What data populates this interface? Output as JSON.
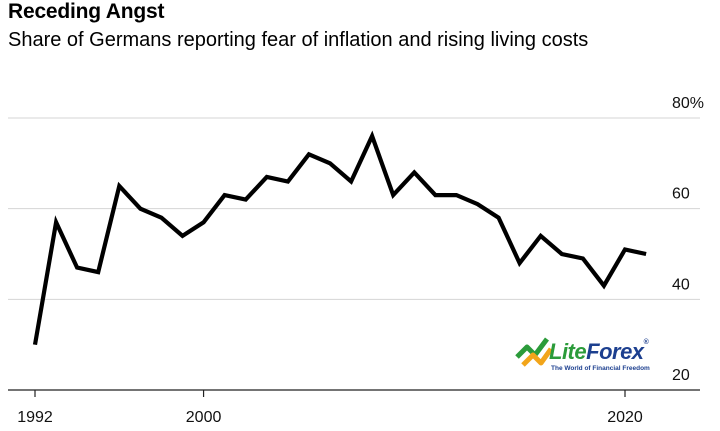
{
  "header": {
    "title": "Receding Angst",
    "subtitle": "Share of Germans reporting fear of inflation and rising living costs"
  },
  "watermark": {
    "brand_lite": "Lite",
    "brand_forex": "Forex",
    "registered": "®",
    "tagline": "The World of Financial Freedom",
    "colors": {
      "green": "#2b9b3a",
      "blue": "#1c3f8f",
      "orange": "#f2a51a"
    }
  },
  "chart_data": {
    "type": "line",
    "title": "Receding Angst",
    "subtitle": "Share of Germans reporting fear of inflation and rising living costs",
    "xlabel": "",
    "ylabel": "",
    "xlim": [
      1992,
      2022
    ],
    "ylim": [
      20,
      80
    ],
    "x_ticks": [
      1992,
      2000,
      2020
    ],
    "x_tick_labels": [
      "1992",
      "2000",
      "2020"
    ],
    "y_ticks": [
      20,
      40,
      60,
      80
    ],
    "y_tick_labels": [
      "20",
      "40",
      "60",
      "80%"
    ],
    "grid": "horizontal",
    "line_color": "#000000",
    "series": [
      {
        "x": [
          1992,
          1993,
          1994,
          1995,
          1996,
          1997,
          1998,
          1999,
          2000,
          2001,
          2002,
          2003,
          2004,
          2005,
          2006,
          2007,
          2008,
          2009,
          2010,
          2011,
          2012,
          2013,
          2014,
          2015,
          2016,
          2017,
          2018,
          2019,
          2020,
          2021
        ],
        "values": [
          30,
          57,
          47,
          46,
          65,
          60,
          58,
          54,
          57,
          63,
          62,
          67,
          66,
          72,
          70,
          66,
          76,
          63,
          68,
          63,
          63,
          61,
          58,
          48,
          54,
          50,
          49,
          43,
          51,
          50
        ]
      }
    ]
  }
}
